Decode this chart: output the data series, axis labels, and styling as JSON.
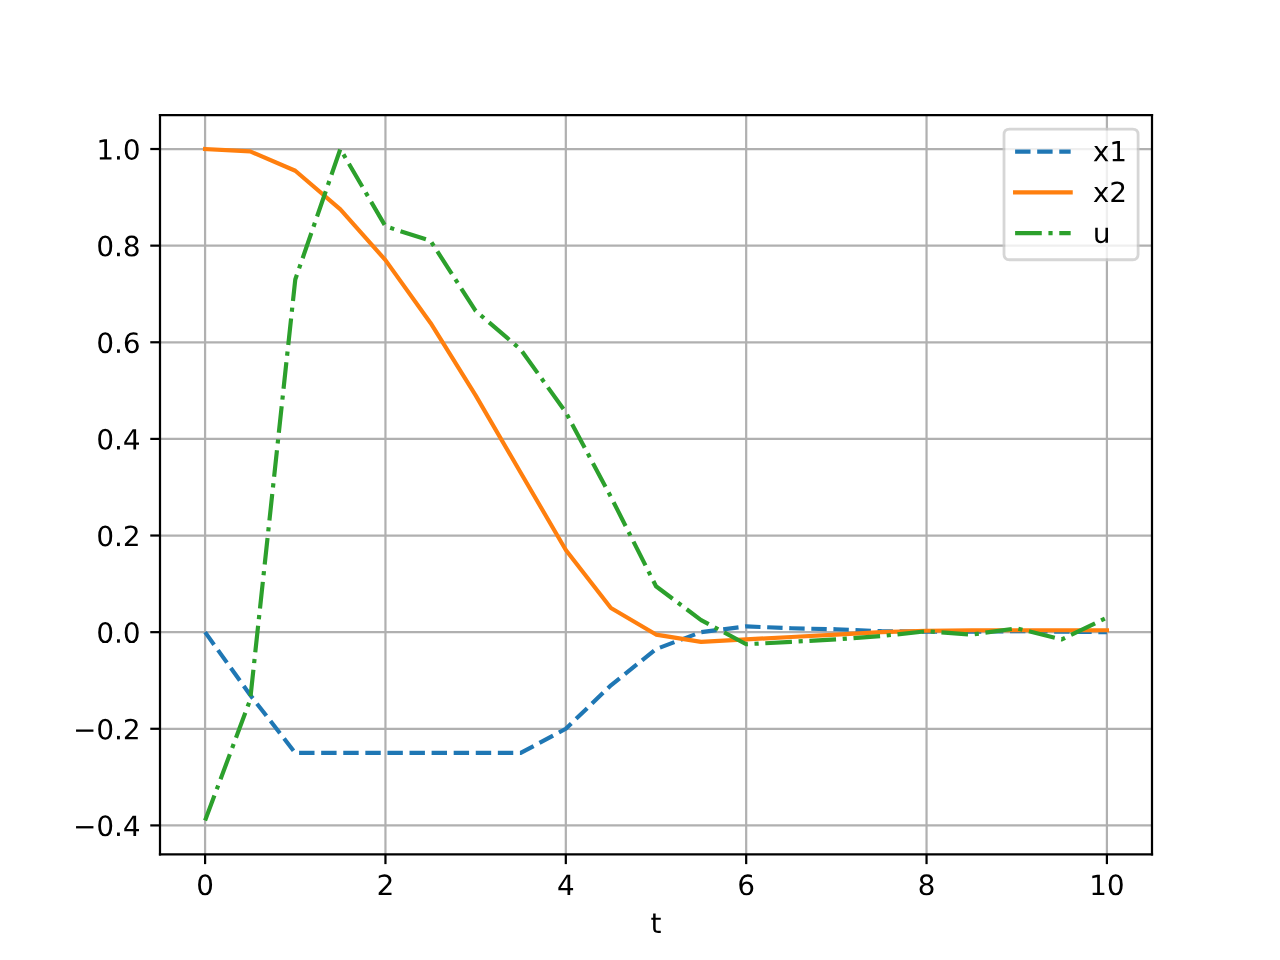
{
  "chart_data": {
    "type": "line",
    "xlabel": "t",
    "x": [
      0,
      0.5,
      1,
      1.5,
      2,
      2.5,
      3,
      3.5,
      4,
      4.5,
      5,
      5.5,
      6,
      6.5,
      7,
      7.5,
      8,
      8.5,
      9,
      9.5,
      10
    ],
    "series": [
      {
        "name": "x1",
        "color": "#1f77b4",
        "line_style": "dashed",
        "values": [
          0,
          -0.13,
          -0.25,
          -0.25,
          -0.25,
          -0.25,
          -0.25,
          -0.25,
          -0.2,
          -0.11,
          -0.035,
          0.0,
          0.012,
          0.008,
          0.006,
          0.002,
          0.001,
          0.001,
          0.002,
          0.001,
          0.0
        ]
      },
      {
        "name": "x2",
        "color": "#ff7f0e",
        "line_style": "solid",
        "values": [
          1.0,
          0.995,
          0.955,
          0.875,
          0.77,
          0.64,
          0.49,
          0.33,
          0.17,
          0.05,
          -0.005,
          -0.02,
          -0.015,
          -0.01,
          -0.005,
          0.0,
          0.003,
          0.004,
          0.004,
          0.004,
          0.004
        ]
      },
      {
        "name": "u",
        "color": "#2ca02c",
        "line_style": "dashdot",
        "values": [
          -0.39,
          -0.14,
          0.73,
          1.0,
          0.84,
          0.81,
          0.665,
          0.585,
          0.455,
          0.28,
          0.095,
          0.025,
          -0.025,
          -0.02,
          -0.015,
          -0.008,
          0.002,
          -0.005,
          0.008,
          -0.015,
          0.03
        ]
      }
    ],
    "xlim": [
      -0.5,
      10.5
    ],
    "ylim": [
      -0.46,
      1.07
    ],
    "xticks": [
      0,
      2,
      4,
      6,
      8,
      10
    ],
    "yticks": [
      {
        "value": -0.4,
        "label": "−0.4"
      },
      {
        "value": -0.2,
        "label": "−0.2"
      },
      {
        "value": 0,
        "label": "0.0"
      },
      {
        "value": 0.2,
        "label": "0.2"
      },
      {
        "value": 0.4,
        "label": "0.4"
      },
      {
        "value": 0.6,
        "label": "0.6"
      },
      {
        "value": 0.8,
        "label": "0.8"
      },
      {
        "value": 1.0,
        "label": "1.0"
      }
    ],
    "grid": true,
    "legend": "top right"
  }
}
